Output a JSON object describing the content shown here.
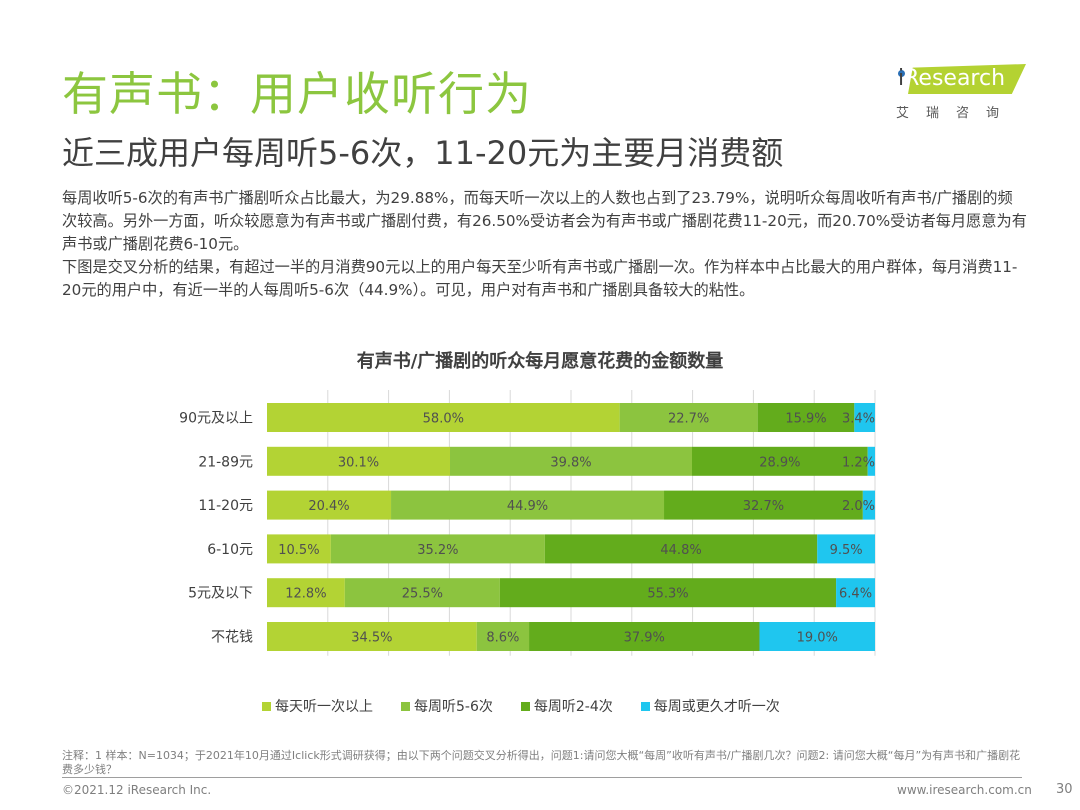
{
  "header": {
    "title": "有声书：用户收听行为",
    "subtitle": "近三成用户每周听5-6次，11-20元为主要月消费额"
  },
  "logo": {
    "brand_i": "i",
    "brand_rest": "Research",
    "brand_cn": "艾瑞咨询"
  },
  "body": {
    "paragraph1": "每周收听5-6次的有声书广播剧听众占比最大，为29.88%，而每天听一次以上的人数也占到了23.79%，说明听众每周收听有声书/广播剧的频次较高。另外一方面，听众较愿意为有声书或广播剧付费，有26.50%受访者会为有声书或广播剧花费11-20元，而20.70%受访者每月愿意为有声书或广播剧花费6-10元。",
    "paragraph2": "下图是交叉分析的结果，有超过一半的月消费90元以上的用户每天至少听有声书或广播剧一次。作为样本中占比最大的用户群体，每月消费11-20元的用户中，有近一半的人每周听5-6次（44.9%）。可见，用户对有声书和广播剧具备较大的粘性。"
  },
  "chart_data": {
    "type": "bar",
    "orientation": "horizontal",
    "stacked": true,
    "percent_stacked": true,
    "title": "有声书/广播剧的听众每月愿意花费的金额数量",
    "xlabel": "",
    "ylabel": "",
    "xlim": [
      0,
      100
    ],
    "grid": true,
    "legend_position": "bottom",
    "categories": [
      "90元及以上",
      "21-89元",
      "11-20元",
      "6-10元",
      "5元及以下",
      "不花钱"
    ],
    "series": [
      {
        "name": "每天听一次以上",
        "color": "#b3d334",
        "values": [
          58.0,
          30.1,
          20.4,
          10.5,
          12.8,
          34.5
        ]
      },
      {
        "name": "每周听5-6次",
        "color": "#8cc43f",
        "values": [
          22.7,
          39.8,
          44.9,
          35.2,
          25.5,
          8.6
        ]
      },
      {
        "name": "每周听2-4次",
        "color": "#63ac1c",
        "values": [
          15.9,
          28.9,
          32.7,
          44.8,
          55.3,
          37.9
        ]
      },
      {
        "name": "每周或更久才听一次",
        "color": "#1fc6ef",
        "values": [
          3.4,
          1.2,
          2.0,
          9.5,
          6.4,
          19.0
        ]
      }
    ],
    "label_suffix": "%"
  },
  "footer": {
    "note": "注释：1 样本：N=1034；于2021年10月通过Iclick形式调研获得；由以下两个问题交叉分析得出，问题1:请问您大概“每周”收听有声书/广播剧几次？问题2: 请问您大概“每月”为有声书和广播剧花费多少钱？",
    "copyright": "©2021.12 iResearch Inc.",
    "website": "www.iresearch.com.cn",
    "page_number": "30"
  }
}
